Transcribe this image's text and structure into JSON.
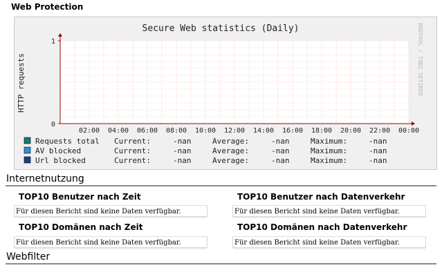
{
  "page": {
    "title": "Web Protection"
  },
  "graph": {
    "title": "Secure Web statistics (Daily)",
    "watermark": "RRDTOOL / TOBI OETIKER",
    "colors": {
      "background": "#f0f0f0",
      "grid": "#ff9c9c",
      "axis": "#990000",
      "text": "#222222"
    },
    "legend": [
      {
        "name": "Requests total",
        "color": "#1a7a75",
        "current": "-nan",
        "average": "-nan",
        "maximum": "-nan"
      },
      {
        "name": "AV blocked",
        "color": "#2f8fd8",
        "current": "-nan",
        "average": "-nan",
        "maximum": "-nan"
      },
      {
        "name": "Url blocked",
        "color": "#1f3f86",
        "current": "-nan",
        "average": "-nan",
        "maximum": "-nan"
      }
    ],
    "stat_labels": {
      "current": "Current:",
      "average": "Average:",
      "maximum": "Maximum:"
    }
  },
  "chart_data": {
    "type": "line",
    "title": "Secure Web statistics (Daily)",
    "xlabel": "",
    "ylabel": "HTTP requests",
    "x_ticks": [
      "02:00",
      "04:00",
      "06:00",
      "08:00",
      "10:00",
      "12:00",
      "14:00",
      "16:00",
      "18:00",
      "20:00",
      "22:00",
      "00:00"
    ],
    "y_ticks": [
      0,
      1
    ],
    "ylim": [
      0,
      1
    ],
    "grid": true,
    "legend_position": "bottom",
    "series": [
      {
        "name": "Requests total",
        "values": []
      },
      {
        "name": "AV blocked",
        "values": []
      },
      {
        "name": "Url blocked",
        "values": []
      }
    ]
  },
  "sections": [
    {
      "label": "Internetnutzung"
    },
    {
      "label": "Webfilter"
    }
  ],
  "panels": [
    {
      "title": "TOP10 Benutzer nach Zeit",
      "message": "Für diesen Bericht sind keine Daten verfügbar."
    },
    {
      "title": "TOP10 Benutzer nach Datenverkehr",
      "message": "Für diesen Bericht sind keine Daten verfügbar."
    },
    {
      "title": "TOP10 Domänen nach Zeit",
      "message": "Für diesen Bericht sind keine Daten verfügbar."
    },
    {
      "title": "TOP10 Domänen nach Datenverkehr",
      "message": "Für diesen Bericht sind keine Daten verfügbar."
    }
  ]
}
